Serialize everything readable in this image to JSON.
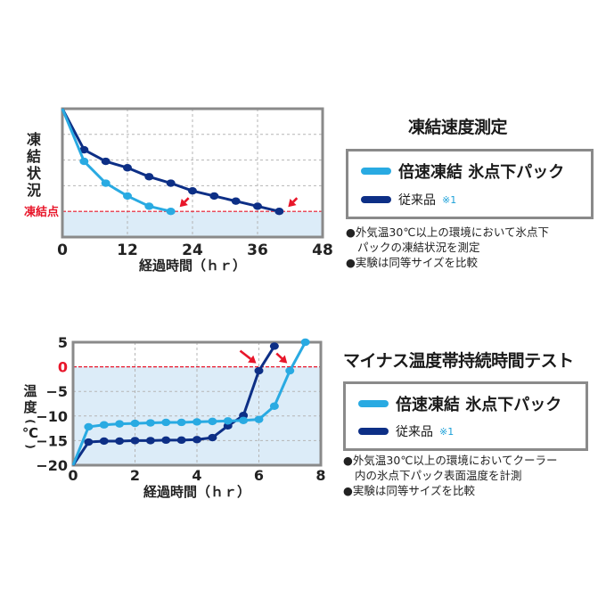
{
  "colors": {
    "fast_freeze": "#29aae2",
    "conventional": "#0d2f86",
    "freeze_line": "#e8162a",
    "below_zero_fill": "#dcecf8",
    "grid": "#b5b5b5",
    "frame": "#8a8a8a",
    "arrow": "#e8162a"
  },
  "section1": {
    "title": "凍結速度測定",
    "legend": {
      "item1_label": "倍速凍結 氷点下パック",
      "item2_label": "従来品",
      "item2_note": "※1"
    },
    "notes": {
      "line1": "●外気温30℃以上の環境において氷点下",
      "line2": "パックの凍結状況を測定",
      "line3": "●実験は同等サイズを比較"
    }
  },
  "section2": {
    "title": "マイナス温度帯持続時間テスト",
    "legend": {
      "item1_label": "倍速凍結 氷点下パック",
      "item2_label": "従来品",
      "item2_note": "※1"
    },
    "notes": {
      "line1": "●外気温30℃以上の環境においてクーラー",
      "line2": "内の氷点下パック表面温度を計測",
      "line3": "●実験は同等サイズを比較"
    }
  },
  "chart_data": [
    {
      "type": "line",
      "title": "凍結速度測定",
      "xlabel": "経過時間（ｈｒ）",
      "ylabel": "凍結状況",
      "xlim": [
        0,
        48
      ],
      "ylim": [
        0,
        5
      ],
      "x_ticks": [
        "0",
        "12",
        "24",
        "36",
        "48"
      ],
      "y_ticks": [],
      "grid": true,
      "annotations": [
        {
          "text": "凍結点",
          "y": 1.0,
          "type": "horizontal-dashed-line",
          "color": "#e8162a"
        },
        {
          "type": "arrow",
          "x": 20,
          "y": 1.0,
          "target": "倍速凍結 氷点下パック"
        },
        {
          "type": "arrow",
          "x": 40,
          "y": 1.0,
          "target": "従来品"
        }
      ],
      "legend_position": "right",
      "series": [
        {
          "name": "倍速凍結 氷点下パック",
          "x": [
            0,
            4,
            8,
            12,
            16,
            20
          ],
          "values": [
            5.0,
            2.95,
            2.1,
            1.6,
            1.2,
            1.0
          ]
        },
        {
          "name": "従来品",
          "x": [
            0,
            4,
            8,
            12,
            16,
            20,
            24,
            28,
            32,
            36,
            40
          ],
          "values": [
            5.0,
            3.4,
            2.95,
            2.7,
            2.35,
            2.1,
            1.8,
            1.6,
            1.4,
            1.2,
            1.0
          ]
        }
      ]
    },
    {
      "type": "line",
      "title": "マイナス温度帯持続時間テスト",
      "xlabel": "経過時間（ｈｒ）",
      "ylabel": "温度（℃）",
      "xlim": [
        0,
        8
      ],
      "ylim": [
        -20,
        5
      ],
      "x_ticks": [
        "0",
        "2",
        "4",
        "6",
        "8"
      ],
      "y_ticks": [
        "5",
        "0",
        "-5",
        "-10",
        "-15",
        "-20"
      ],
      "grid": true,
      "annotations": [
        {
          "text": "0",
          "y": 0,
          "type": "horizontal-dashed-line",
          "color": "#e8162a"
        },
        {
          "type": "arrow",
          "x": 6,
          "y": -0.8,
          "target": "従来品"
        },
        {
          "type": "arrow",
          "x": 7,
          "y": -0.8,
          "target": "倍速凍結 氷点下パック"
        }
      ],
      "legend_position": "right",
      "series": [
        {
          "name": "倍速凍結 氷点下パック",
          "x": [
            0,
            0.5,
            1,
            1.5,
            2,
            2.5,
            3,
            3.5,
            4,
            4.5,
            5,
            5.5,
            6,
            6.5,
            7,
            7.5
          ],
          "values": [
            -20,
            -12.2,
            -11.8,
            -11.6,
            -11.5,
            -11.4,
            -11.3,
            -11.3,
            -11.2,
            -11.1,
            -11.0,
            -10.9,
            -10.7,
            -8.0,
            -0.8,
            5.0
          ]
        },
        {
          "name": "従来品",
          "x": [
            0,
            0.5,
            1,
            1.5,
            2,
            2.5,
            3,
            3.5,
            4,
            4.5,
            5,
            5.5,
            6,
            6.5
          ],
          "values": [
            -20,
            -15.3,
            -15.1,
            -15.1,
            -15.0,
            -15.0,
            -14.9,
            -14.9,
            -14.8,
            -14.4,
            -12.0,
            -9.9,
            -0.8,
            4.2
          ]
        }
      ]
    }
  ]
}
